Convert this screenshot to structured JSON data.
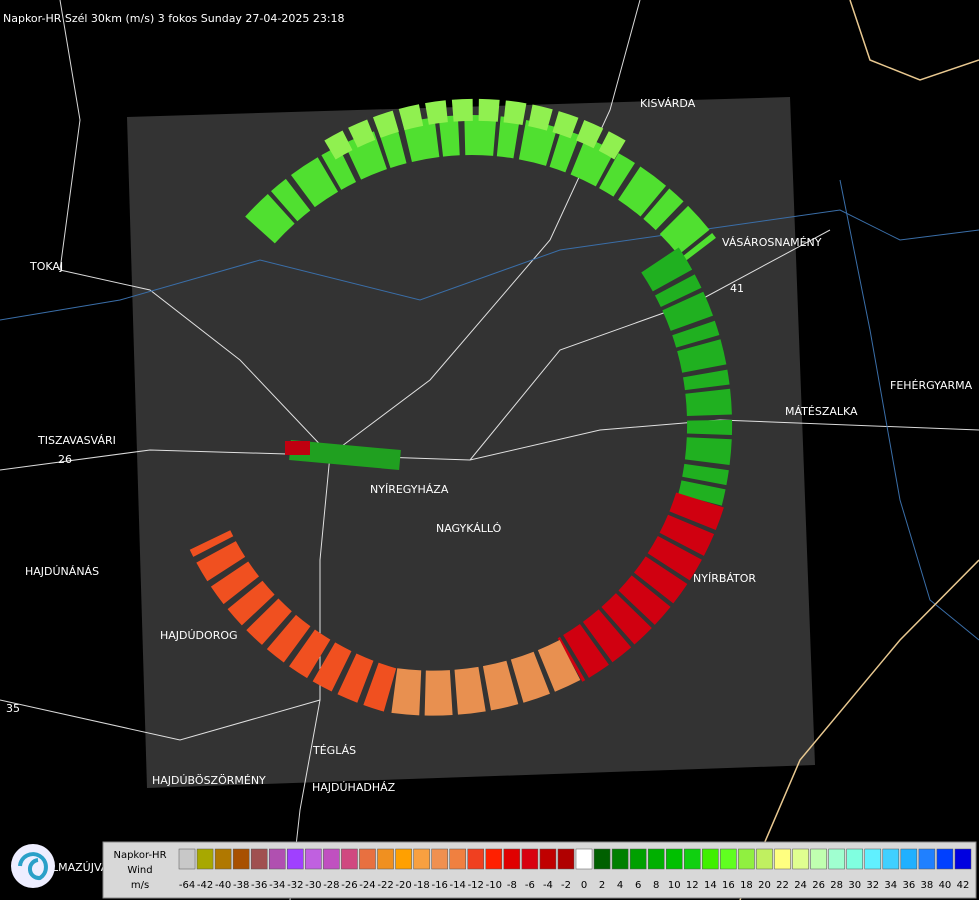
{
  "header": {
    "title": "Napkor-HR Szél 30km (m/s) 3 fokos Sunday 27-04-2025 23:18"
  },
  "cities": [
    {
      "label": "KISVÁRDA"
    },
    {
      "label": "VÁSÁROSNAMÉNY"
    },
    {
      "label": "TOKAJ"
    },
    {
      "label": "FEHÉRGYARMA"
    },
    {
      "label": "MÁTÉSZALKA"
    },
    {
      "label": "TISZAVASVÁRI"
    },
    {
      "label": "NYÍREGYHÁZA"
    },
    {
      "label": "NAGYKÁLLÓ"
    },
    {
      "label": "NYÍRBÁTOR"
    },
    {
      "label": "HAJDÚNÁNÁS"
    },
    {
      "label": "HAJDÚDOROG"
    },
    {
      "label": "TÉGLÁS"
    },
    {
      "label": "HAJDÚBÖSZÖRMÉNY"
    },
    {
      "label": "HAJDÚHADHÁZ"
    },
    {
      "label": "LMAZÚJVÁR"
    }
  ],
  "roads": [
    "41",
    "26",
    "35"
  ],
  "legend": {
    "lines": [
      "Napkor-HR",
      "Wind",
      "m/s"
    ],
    "scale": [
      {
        "label": "-64",
        "color": "#c8c8c8"
      },
      {
        "label": "-42",
        "color": "#a8a800"
      },
      {
        "label": "-40",
        "color": "#b07800"
      },
      {
        "label": "-38",
        "color": "#a85000"
      },
      {
        "label": "-36",
        "color": "#a05050"
      },
      {
        "label": "-34",
        "color": "#b050b0"
      },
      {
        "label": "-32",
        "color": "#a040ff"
      },
      {
        "label": "-30",
        "color": "#c060e0"
      },
      {
        "label": "-28",
        "color": "#c050c0"
      },
      {
        "label": "-26",
        "color": "#d04880"
      },
      {
        "label": "-24",
        "color": "#e87040"
      },
      {
        "label": "-22",
        "color": "#f09020"
      },
      {
        "label": "-20",
        "color": "#ffa000"
      },
      {
        "label": "-18",
        "color": "#f8a040"
      },
      {
        "label": "-16",
        "color": "#f09050"
      },
      {
        "label": "-14",
        "color": "#f08040"
      },
      {
        "label": "-12",
        "color": "#f04020"
      },
      {
        "label": "-10",
        "color": "#ff2000"
      },
      {
        "label": "-8",
        "color": "#e00000"
      },
      {
        "label": "-6",
        "color": "#d80010"
      },
      {
        "label": "-4",
        "color": "#c00000"
      },
      {
        "label": "-2",
        "color": "#b00000"
      },
      {
        "label": "0",
        "color": "#ffffff"
      },
      {
        "label": "2",
        "color": "#006000"
      },
      {
        "label": "4",
        "color": "#008000"
      },
      {
        "label": "6",
        "color": "#00a000"
      },
      {
        "label": "8",
        "color": "#00b000"
      },
      {
        "label": "10",
        "color": "#00c000"
      },
      {
        "label": "12",
        "color": "#10d010"
      },
      {
        "label": "14",
        "color": "#40f000"
      },
      {
        "label": "16",
        "color": "#60ff20"
      },
      {
        "label": "18",
        "color": "#90f040"
      },
      {
        "label": "20",
        "color": "#c0f060"
      },
      {
        "label": "22",
        "color": "#ffff80"
      },
      {
        "label": "24",
        "color": "#e0ff90"
      },
      {
        "label": "26",
        "color": "#c0ffb0"
      },
      {
        "label": "28",
        "color": "#a0ffd0"
      },
      {
        "label": "30",
        "color": "#80ffe0"
      },
      {
        "label": "32",
        "color": "#60f0ff"
      },
      {
        "label": "34",
        "color": "#40d0ff"
      },
      {
        "label": "36",
        "color": "#20b0ff"
      },
      {
        "label": "38",
        "color": "#2080ff"
      },
      {
        "label": "40",
        "color": "#0040ff"
      },
      {
        "label": "42",
        "color": "#0000e0"
      }
    ]
  }
}
